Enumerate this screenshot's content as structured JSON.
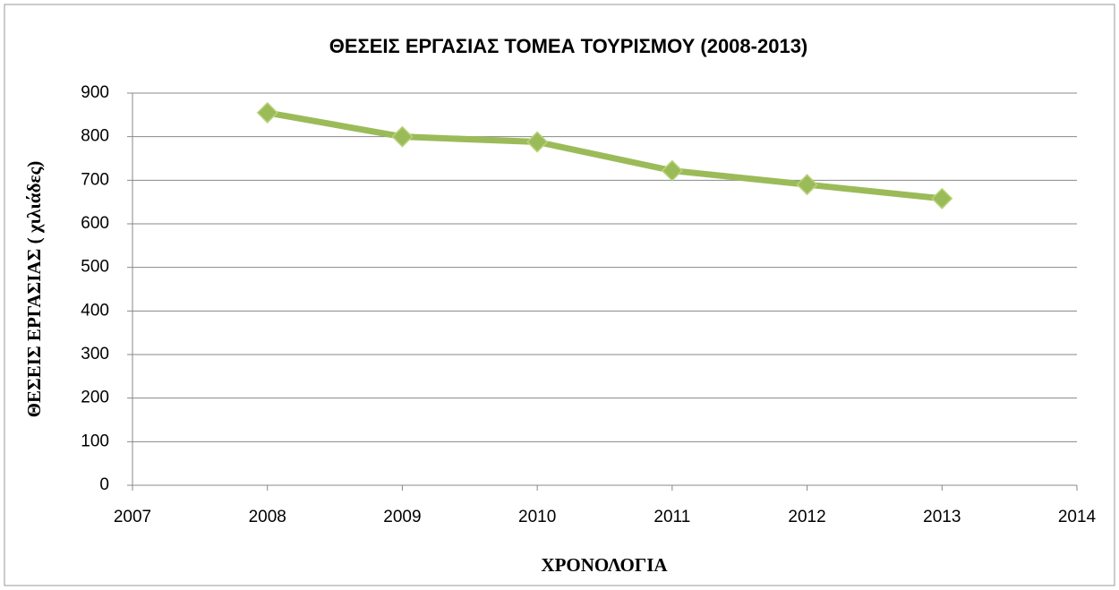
{
  "chart_data": {
    "type": "line",
    "title": "ΘΕΣΕΙΣ ΕΡΓΑΣΙΑΣ ΤΟΜΕΑ ΤΟΥΡΙΣΜΟΥ (2008-2013)",
    "xlabel": "ΧΡΟΝΟΛΟΓΙΑ",
    "ylabel": "ΘΕΣΕΙΣ ΕΡΓΑΣΙΑΣ ( χιλιάδες)",
    "x": [
      2008,
      2009,
      2010,
      2011,
      2012,
      2013
    ],
    "series": [
      {
        "color": "#9bbb59",
        "values": [
          855,
          800,
          788,
          722,
          690,
          658
        ]
      }
    ],
    "xlim": [
      2007,
      2014
    ],
    "xticks": [
      2007,
      2008,
      2009,
      2010,
      2011,
      2012,
      2013,
      2014
    ],
    "ylim": [
      0,
      900
    ],
    "yticks": [
      0,
      100,
      200,
      300,
      400,
      500,
      600,
      700,
      800,
      900
    ],
    "grid": true
  }
}
